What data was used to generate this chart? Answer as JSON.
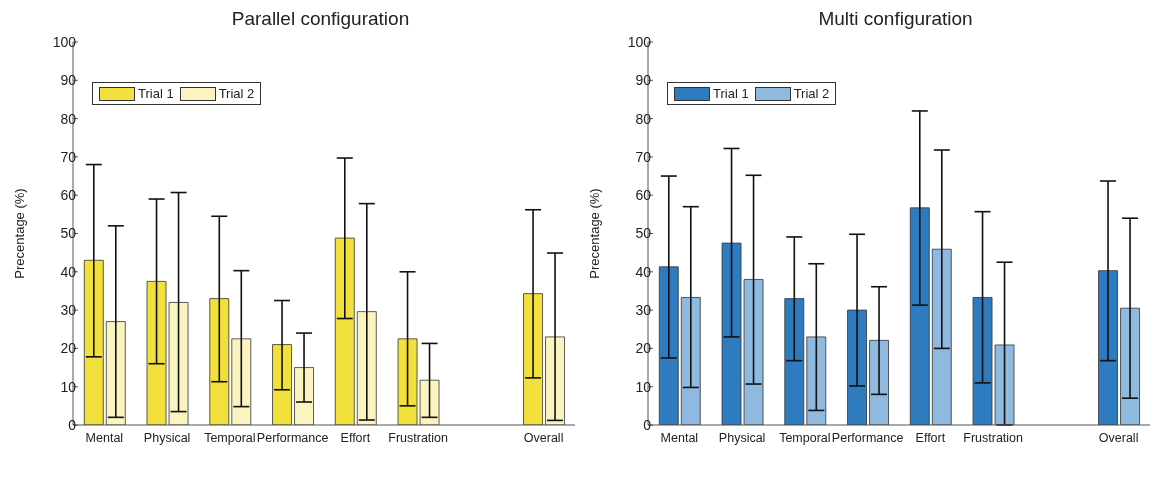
{
  "chart_data": [
    {
      "type": "bar",
      "title": "Parallel configuration",
      "ylabel": "Precentage (%)",
      "categories": [
        "Mental",
        "Physical",
        "Temporal",
        "Performance",
        "Effort",
        "Frustration",
        null,
        "Overall"
      ],
      "series": [
        {
          "name": "Trial 1",
          "color": "#f2e03c",
          "values": [
            43,
            37.5,
            33,
            21,
            48.8,
            22.5,
            null,
            34.3
          ],
          "errors": [
            [
              17.8,
              68
            ],
            [
              16,
              59
            ],
            [
              11.3,
              54.5
            ],
            [
              9.2,
              32.5
            ],
            [
              27.8,
              69.7
            ],
            [
              5,
              40
            ],
            null,
            [
              12.3,
              56.2
            ]
          ]
        },
        {
          "name": "Trial 2",
          "color": "#fbf3c0",
          "values": [
            27,
            32,
            22.5,
            15,
            29.6,
            11.7,
            null,
            23
          ],
          "errors": [
            [
              2,
              52
            ],
            [
              3.5,
              60.7
            ],
            [
              4.8,
              40.3
            ],
            [
              6,
              24
            ],
            [
              1.3,
              57.8
            ],
            [
              2,
              21.3
            ],
            null,
            [
              1.2,
              44.9
            ]
          ]
        }
      ],
      "ylim": [
        0,
        100
      ],
      "yticks": [
        0,
        10,
        20,
        30,
        40,
        50,
        60,
        70,
        80,
        90,
        100
      ],
      "grid": false,
      "legend": "top left"
    },
    {
      "type": "bar",
      "title": "Multi configuration",
      "ylabel": "Precentage (%)",
      "categories": [
        "Mental",
        "Physical",
        "Temporal",
        "Performance",
        "Effort",
        "Frustration",
        null,
        "Overall"
      ],
      "series": [
        {
          "name": "Trial 1",
          "color": "#2f7bbf",
          "values": [
            41.3,
            47.5,
            33,
            30,
            56.7,
            33.3,
            null,
            40.3
          ],
          "errors": [
            [
              17.5,
              65
            ],
            [
              23,
              72.2
            ],
            [
              16.8,
              49.1
            ],
            [
              10.2,
              49.8
            ],
            [
              31.3,
              82
            ],
            [
              11,
              55.7
            ],
            null,
            [
              16.8,
              63.7
            ]
          ]
        },
        {
          "name": "Trial 2",
          "color": "#8fb9df",
          "values": [
            33.3,
            38,
            23,
            22.1,
            45.9,
            20.9,
            null,
            30.5
          ],
          "errors": [
            [
              9.8,
              57
            ],
            [
              10.7,
              65.2
            ],
            [
              3.8,
              42.1
            ],
            [
              8,
              36.1
            ],
            [
              20,
              71.8
            ],
            [
              0,
              42.5
            ],
            null,
            [
              7,
              54
            ]
          ]
        }
      ],
      "ylim": [
        0,
        100
      ],
      "yticks": [
        0,
        10,
        20,
        30,
        40,
        50,
        60,
        70,
        80,
        90,
        100
      ],
      "grid": false,
      "legend": "top left"
    }
  ]
}
